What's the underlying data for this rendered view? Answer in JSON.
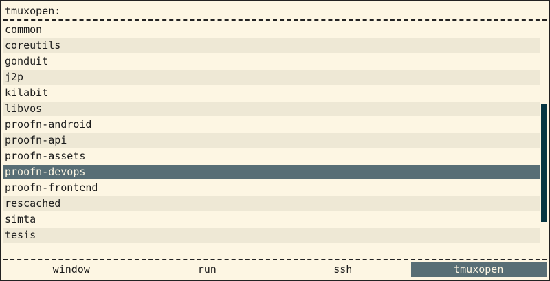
{
  "prompt": {
    "label": "tmuxopen:"
  },
  "list": {
    "items": [
      "common",
      "coreutils",
      "gonduit",
      "j2p",
      "kilabit",
      "libvos",
      "proofn-android",
      "proofn-api",
      "proofn-assets",
      "proofn-devops",
      "proofn-frontend",
      "rescached",
      "simta",
      "tesis"
    ],
    "selected": "proofn-devops"
  },
  "tabs": {
    "items": [
      "window",
      "run",
      "ssh",
      "tmuxopen"
    ],
    "active": "tmuxopen"
  },
  "colors": {
    "background": "#fdf6e3",
    "stripe": "#eee8d5",
    "selection": "#586e75",
    "scrollbar": "#073642"
  }
}
